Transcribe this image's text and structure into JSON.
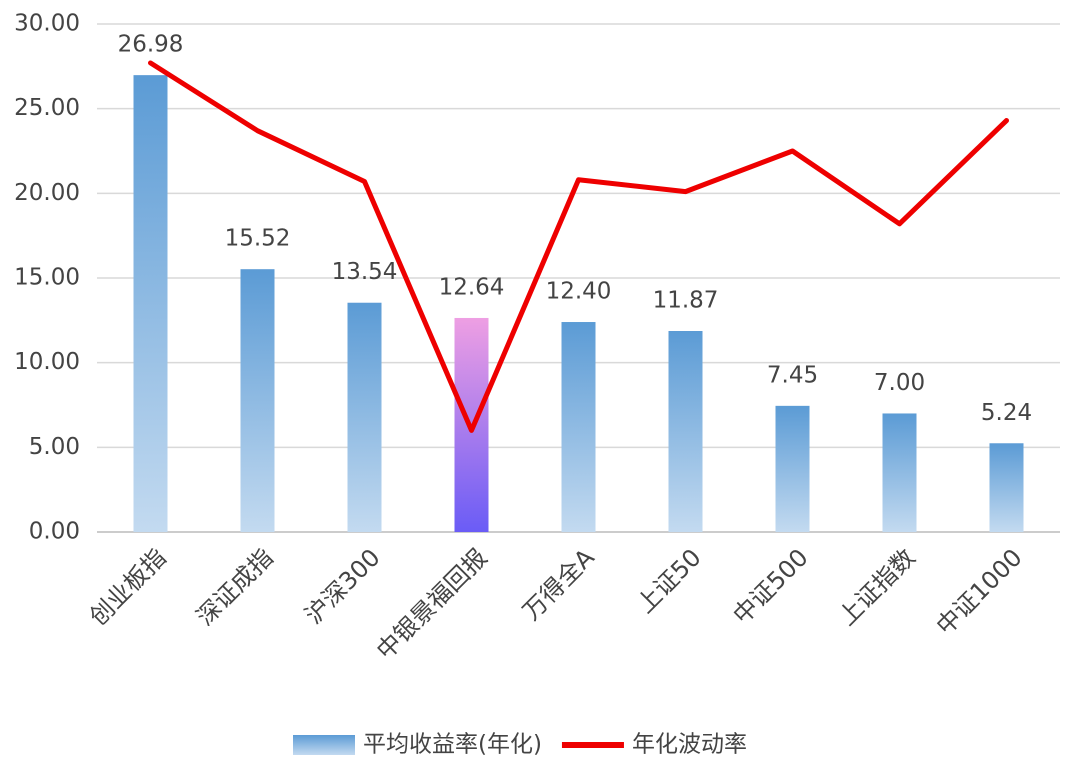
{
  "chart_data": {
    "type": "bar",
    "categories": [
      "创业板指",
      "深证成指",
      "沪深300",
      "中银景福回报",
      "万得全A",
      "上证50",
      "中证500",
      "上证指数",
      "中证1000"
    ],
    "series": [
      {
        "name": "平均收益率(年化)",
        "type": "bar",
        "color": "#5b9bd5",
        "gradient_to": "#c3daf0",
        "highlight_index": 3,
        "highlight_colors": [
          "#ee9fe3",
          "#6a5cf6"
        ],
        "values": [
          26.98,
          15.52,
          13.54,
          12.64,
          12.4,
          11.87,
          7.45,
          7.0,
          5.24
        ],
        "value_labels": [
          "26.98",
          "15.52",
          "13.54",
          "12.64",
          "12.40",
          "11.87",
          "7.45",
          "7.00",
          "5.24"
        ]
      },
      {
        "name": "年化波动率",
        "type": "line",
        "color": "#ee0000",
        "values": [
          27.7,
          23.7,
          20.7,
          6.0,
          20.8,
          20.1,
          22.5,
          18.2,
          24.3
        ]
      }
    ],
    "ylim": [
      0,
      30
    ],
    "yticks": [
      {
        "value": 0,
        "label": "0.00"
      },
      {
        "value": 5,
        "label": "5.00"
      },
      {
        "value": 10,
        "label": "10.00"
      },
      {
        "value": 15,
        "label": "15.00"
      },
      {
        "value": 20,
        "label": "20.00"
      },
      {
        "value": 25,
        "label": "25.00"
      },
      {
        "value": 30,
        "label": "30.00"
      }
    ],
    "grid": true,
    "legend": "bottom"
  }
}
